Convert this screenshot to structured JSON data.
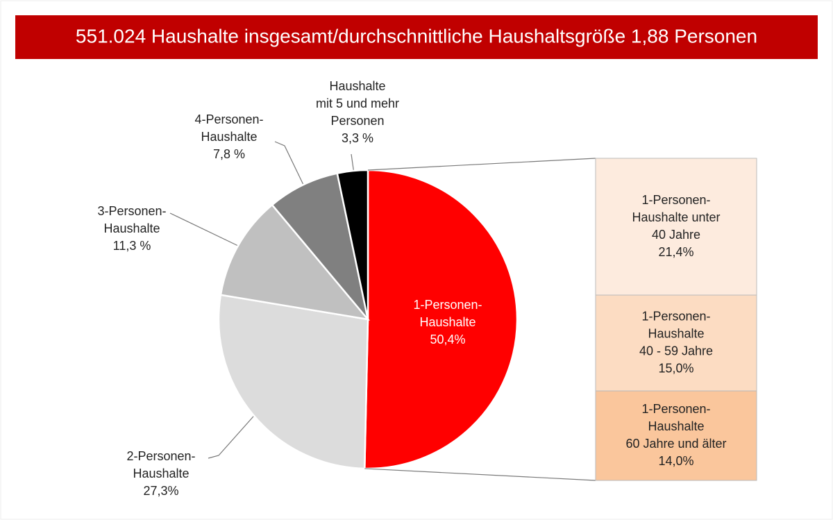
{
  "chart_data": [
    {
      "type": "pie",
      "title": "551.024 Haushalte insgesamt/durchschnittliche Haushaltsgröße 1,88 Personen",
      "categories": [
        [
          "1-Personen-",
          "Haushalte"
        ],
        [
          "2-Personen-",
          "Haushalte"
        ],
        [
          "3-Personen-",
          "Haushalte"
        ],
        [
          "4-Personen-",
          "Haushalte"
        ],
        [
          "Haushalte",
          "mit 5 und mehr",
          "Personen"
        ]
      ],
      "values": [
        50.4,
        27.3,
        11.3,
        7.8,
        3.3
      ],
      "value_labels": [
        "50,4%",
        "27,3%",
        "11,3 %",
        "7,8 %",
        "3,3 %"
      ],
      "colors": [
        "#ff0000",
        "#dcdcdc",
        "#c0c0c0",
        "#808080",
        "#000000"
      ]
    },
    {
      "type": "bar",
      "categories": [
        [
          "1-Personen-",
          "Haushalte unter",
          "40 Jahre"
        ],
        [
          "1-Personen-",
          "Haushalte",
          "40 - 59 Jahre"
        ],
        [
          "1-Personen-",
          "Haushalte",
          "60 Jahre und älter"
        ]
      ],
      "values": [
        21.4,
        15.0,
        14.0
      ],
      "value_labels": [
        "21,4%",
        "15,0%",
        "14,0%"
      ],
      "colors": [
        "#fdebde",
        "#fcdcc2",
        "#fac69c"
      ]
    }
  ]
}
